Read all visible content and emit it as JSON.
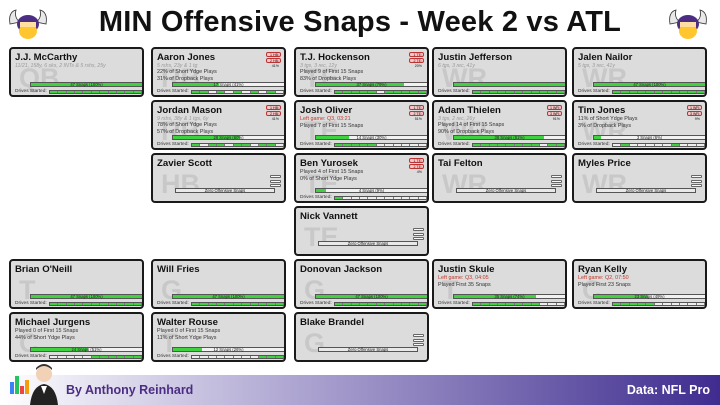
{
  "title": "MIN Offensive Snaps - Week 2 vs ATL",
  "footer": {
    "author": "By Anthony Reinhard",
    "source": "Data: NFL Pro"
  },
  "colors": {
    "purple": "#4b2e83",
    "gold": "#ffc62f",
    "bar_green": "#3fd13f",
    "tag_red": "#f7c6c6"
  },
  "cards": [
    {
      "name": "J.J. McCarthy",
      "pos": "QB",
      "stats": "11/21, 158y, 6 sks, 2 INTs & 5 rshs, 25y",
      "lines": [],
      "snaps": "47 Snaps (100%)",
      "pct": 1.0,
      "drives": [
        1,
        1,
        1,
        1,
        1,
        1,
        1,
        1,
        1,
        1,
        1
      ],
      "tags": []
    },
    {
      "name": "Aaron Jones",
      "pos": "RB",
      "stats": "5 rshs, 23y & 1 tg",
      "lines": [
        "22% of Short Ydge Plays",
        "31% of Dropback Plays"
      ],
      "snaps": "17 Snaps (41%)",
      "pct": 0.41,
      "drives": [
        1,
        1,
        0,
        1,
        0,
        1,
        0,
        1,
        0,
        1,
        0
      ],
      "tags": [
        "1 HB: 41%",
        "2 HB: 41%"
      ]
    },
    {
      "name": "T.J. Hockenson",
      "pos": "TE",
      "stats": "3 tgs, 3 rec, 12y",
      "lines": [
        "Played 9 of First 15 Snaps",
        "83% of Dropback Plays"
      ],
      "snaps": "37 Snaps (79%)",
      "pct": 0.79,
      "drives": [
        1,
        1,
        1,
        1,
        1,
        0,
        1,
        1,
        1,
        1,
        1
      ],
      "tags": [
        "1 TE: 79%",
        "2 TE: 20%"
      ]
    },
    {
      "name": "Justin Jefferson",
      "pos": "WR",
      "stats": "6 tgs, 3 rec, 41y",
      "lines": [],
      "snaps": "",
      "pct": 1.0,
      "drives": [
        1,
        1,
        1,
        1,
        1,
        1,
        1,
        1,
        1,
        1,
        1
      ],
      "tags": []
    },
    {
      "name": "Jalen Nailor",
      "pos": "WR",
      "stats": "5 tgs, 3 rec, 41y",
      "lines": [],
      "snaps": "47 Snaps (100%)",
      "pct": 1.0,
      "drives": [
        1,
        1,
        1,
        1,
        1,
        1,
        1,
        1,
        1,
        1,
        1
      ],
      "tags": []
    },
    {
      "name": "Jordan Mason",
      "pos": "RB",
      "stats": "9 rshs, 38y & 1 tgs, 6y",
      "lines": [
        "78% of Short Ydge Plays",
        "57% of Dropback Plays"
      ],
      "snaps": "28 Snaps (60%)",
      "pct": 0.6,
      "drives": [
        1,
        0,
        1,
        1,
        0,
        1,
        1,
        0,
        1,
        1,
        0
      ],
      "tags": [
        "1 HB: 59%",
        "2 HB: 41%"
      ]
    },
    {
      "name": "Josh Oliver",
      "pos": "TE",
      "stats": "",
      "lines": [
        "Left game: Q3, 03:21",
        "Played 7 of First 15 Snaps"
      ],
      "redFirst": true,
      "snaps": "14 Snaps (30%)",
      "pct": 0.3,
      "drives": [
        1,
        1,
        1,
        1,
        1,
        0,
        0,
        0,
        0,
        0,
        0
      ],
      "tags": [
        "1 TE: 21%",
        "2 TE: 51%"
      ]
    },
    {
      "name": "Adam Thielen",
      "pos": "WR",
      "stats": "3 tgs, 2 rec, 26y",
      "lines": [
        "Played 14 of First 15 Snaps",
        "90% of Dropback Plays"
      ],
      "snaps": "38 Snaps (81%)",
      "pct": 0.81,
      "drives": [
        1,
        1,
        1,
        1,
        1,
        1,
        1,
        1,
        0,
        1,
        1
      ],
      "tags": [
        "1 WR: 0%",
        "3 WR: 91%"
      ]
    },
    {
      "name": "Tim Jones",
      "pos": "WR",
      "stats": "",
      "lines": [
        "11% of Short Ydge Plays",
        "3% of Dropback Plays"
      ],
      "snaps": "3 Snaps (6%)",
      "pct": 0.06,
      "drives": [
        0,
        1,
        0,
        0,
        0,
        0,
        0,
        1,
        0,
        0,
        0
      ],
      "tags": [
        "1 WR: 0%",
        "3 WR: 9%"
      ]
    },
    {
      "name": "Zavier Scott",
      "pos": "HB",
      "stats": "",
      "lines": [],
      "snaps": "Zero Offensive Snaps",
      "pct": 0,
      "drives": [],
      "tags": []
    },
    {
      "name": "Ben Yurosek",
      "pos": "TE",
      "stats": "",
      "lines": [
        "Played 4 of First 15 Snaps",
        "0% of Short Ydge Plays"
      ],
      "snaps": "4 Snaps (9%)",
      "pct": 0.09,
      "drives": [
        1,
        0,
        0,
        0,
        0,
        0,
        0,
        0,
        0,
        0,
        0
      ],
      "tags": [
        "1 TE: 0%",
        "2 TE: 4%"
      ]
    },
    {
      "name": "Tai Felton",
      "pos": "WR",
      "stats": "",
      "lines": [],
      "snaps": "Zero Offensive Snaps",
      "pct": 0,
      "drives": [],
      "tags": []
    },
    {
      "name": "Myles Price",
      "pos": "WR",
      "stats": "",
      "lines": [],
      "snaps": "Zero Offensive Snaps",
      "pct": 0,
      "drives": [],
      "tags": []
    },
    {
      "name": "Nick Vannett",
      "pos": "TE",
      "stats": "",
      "lines": [],
      "snaps": "Zero Offensive Snaps",
      "pct": 0,
      "drives": [],
      "tags": []
    },
    {
      "name": "Brian O'Neill",
      "pos": "T",
      "stats": "",
      "lines": [],
      "snaps": "47 Snaps (100%)",
      "pct": 1.0,
      "drives": [
        1,
        1,
        1,
        1,
        1,
        1,
        1,
        1,
        1,
        1,
        1
      ],
      "tags": []
    },
    {
      "name": "Will Fries",
      "pos": "G",
      "stats": "",
      "lines": [],
      "snaps": "47 Snaps (100%)",
      "pct": 1.0,
      "drives": [
        1,
        1,
        1,
        1,
        1,
        1,
        1,
        1,
        1,
        1,
        1
      ],
      "tags": []
    },
    {
      "name": "Donovan Jackson",
      "pos": "G",
      "stats": "",
      "lines": [],
      "snaps": "47 Snaps (100%)",
      "pct": 1.0,
      "drives": [
        1,
        1,
        1,
        1,
        1,
        1,
        1,
        1,
        1,
        1,
        1
      ],
      "tags": []
    },
    {
      "name": "Justin Skule",
      "pos": "T",
      "stats": "",
      "lines": [
        "Left game: Q3, 04:05",
        "Played First 35 Snaps"
      ],
      "redFirst": true,
      "snaps": "35 Snaps (74%)",
      "pct": 0.74,
      "drives": [
        1,
        1,
        1,
        1,
        1,
        1,
        1,
        1,
        0,
        0,
        0
      ],
      "tags": []
    },
    {
      "name": "Ryan Kelly",
      "pos": "C",
      "stats": "",
      "lines": [
        "Left game: Q2, 07:50",
        "Played First 23 Snaps"
      ],
      "redFirst": true,
      "snaps": "23 Snaps (49%)",
      "pct": 0.49,
      "drives": [
        1,
        1,
        1,
        1,
        1,
        0,
        0,
        0,
        0,
        0,
        0
      ],
      "tags": []
    },
    {
      "name": "Michael Jurgens",
      "pos": "C",
      "stats": "",
      "lines": [
        "Played 0 of First 15 Snaps",
        "44% of Short Ydge Plays"
      ],
      "snaps": "24 Snaps (51%)",
      "pct": 0.51,
      "drives": [
        0,
        0,
        0,
        0,
        0,
        1,
        1,
        1,
        1,
        1,
        1
      ],
      "tags": []
    },
    {
      "name": "Walter Rouse",
      "pos": "T",
      "stats": "",
      "lines": [
        "Played 0 of First 15 Snaps",
        "11% of Short Ydge Plays"
      ],
      "snaps": "12 Snaps (26%)",
      "pct": 0.26,
      "drives": [
        0,
        0,
        0,
        0,
        0,
        0,
        0,
        0,
        1,
        1,
        1
      ],
      "tags": []
    },
    {
      "name": "Blake Brandel",
      "pos": "G",
      "stats": "",
      "lines": [],
      "snaps": "Zero Offensive Snaps",
      "pct": 0,
      "drives": [],
      "tags": []
    }
  ],
  "drives_label": "Drives Started:"
}
